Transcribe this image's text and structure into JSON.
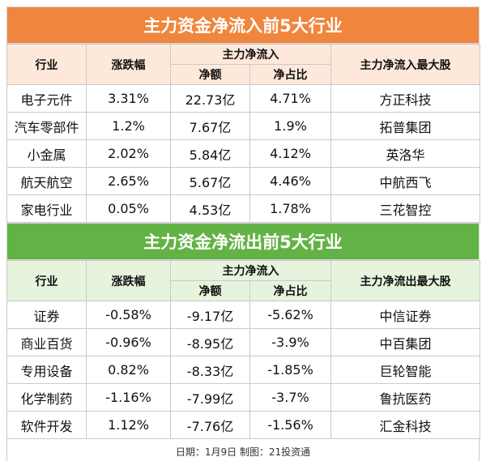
{
  "inflow": {
    "title": "主力资金净流入前5大行业",
    "headers": {
      "industry": "行业",
      "change": "涨跌幅",
      "net_flow": "主力净流入",
      "net_amount": "净额",
      "net_ratio": "净占比",
      "top_stock": "主力净流入最大股"
    },
    "rows": [
      {
        "industry": "电子元件",
        "change": "3.31%",
        "amount": "22.73亿",
        "ratio": "4.71%",
        "stock": "方正科技"
      },
      {
        "industry": "汽车零部件",
        "change": "1.2%",
        "amount": "7.67亿",
        "ratio": "1.9%",
        "stock": "拓普集团"
      },
      {
        "industry": "小金属",
        "change": "2.02%",
        "amount": "5.84亿",
        "ratio": "4.12%",
        "stock": "英洛华"
      },
      {
        "industry": "航天航空",
        "change": "2.65%",
        "amount": "5.67亿",
        "ratio": "4.46%",
        "stock": "中航西飞"
      },
      {
        "industry": "家电行业",
        "change": "0.05%",
        "amount": "4.53亿",
        "ratio": "1.78%",
        "stock": "三花智控"
      }
    ]
  },
  "outflow": {
    "title": "主力资金净流出前5大行业",
    "headers": {
      "industry": "行业",
      "change": "涨跌幅",
      "net_flow": "主力净流入",
      "net_amount": "净额",
      "net_ratio": "净占比",
      "top_stock": "主力净流出最大股"
    },
    "rows": [
      {
        "industry": "证券",
        "change": "-0.58%",
        "amount": "-9.17亿",
        "ratio": "-5.62%",
        "stock": "中信证券"
      },
      {
        "industry": "商业百货",
        "change": "-0.96%",
        "amount": "-8.95亿",
        "ratio": "-3.9%",
        "stock": "中百集团"
      },
      {
        "industry": "专用设备",
        "change": "0.82%",
        "amount": "-8.33亿",
        "ratio": "-1.85%",
        "stock": "巨轮智能"
      },
      {
        "industry": "化学制药",
        "change": "-1.16%",
        "amount": "-7.99亿",
        "ratio": "-3.7%",
        "stock": "鲁抗医药"
      },
      {
        "industry": "软件开发",
        "change": "1.12%",
        "amount": "-7.76亿",
        "ratio": "-1.56%",
        "stock": "汇金科技"
      }
    ]
  },
  "footer": "日期：1月9日 制图：21投资通",
  "colors": {
    "inflow_banner": "#f0853d",
    "outflow_banner": "#63b245",
    "inflow_header": "#fde8da",
    "outflow_header": "#e6f4de"
  }
}
